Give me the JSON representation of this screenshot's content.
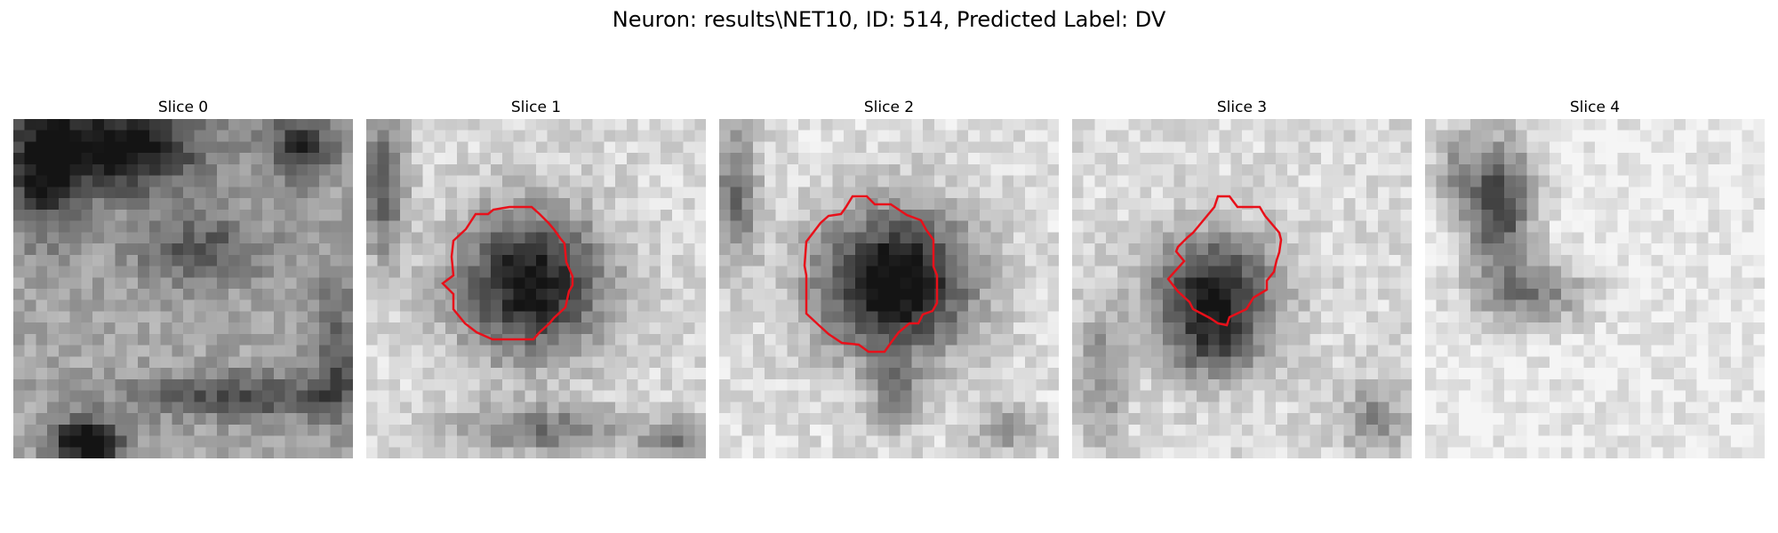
{
  "figure": {
    "suptitle": "Neuron: results\\NET10, ID: 514, Predicted Label: DV"
  },
  "panels": [
    {
      "title": "Slice 0",
      "has_outline": false
    },
    {
      "title": "Slice 1",
      "has_outline": true
    },
    {
      "title": "Slice 2",
      "has_outline": true
    },
    {
      "title": "Slice 3",
      "has_outline": true
    },
    {
      "title": "Slice 4",
      "has_outline": false
    }
  ],
  "colors": {
    "outline": "#e8101a",
    "background": "#ffffff"
  }
}
